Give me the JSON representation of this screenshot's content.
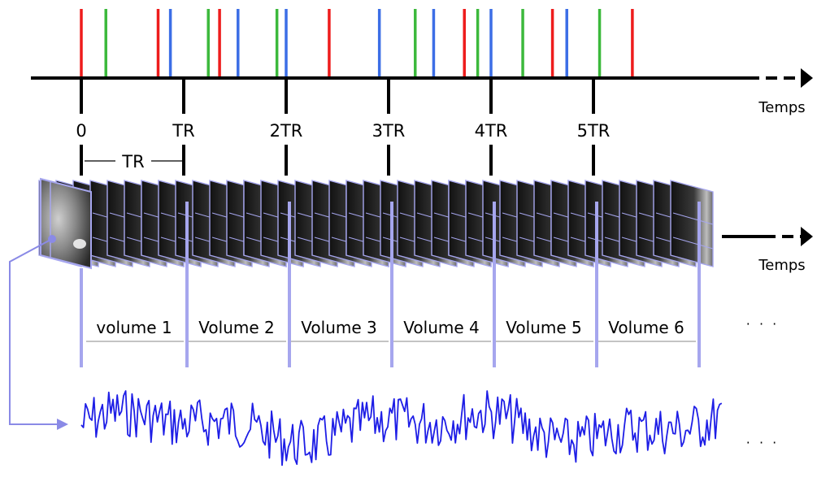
{
  "timeline": {
    "axis_label": "Temps",
    "ticks": [
      "0",
      "TR",
      "2TR",
      "3TR",
      "4TR",
      "5TR"
    ],
    "tr_span_label": "TR",
    "event_colors": {
      "red": "#ee1c1c",
      "green": "#3cb93c",
      "blue": "#3c6ee6"
    },
    "events": [
      {
        "t": 0.0,
        "type": "red"
      },
      {
        "t": 0.24,
        "type": "green"
      },
      {
        "t": 0.75,
        "type": "red"
      },
      {
        "t": 0.87,
        "type": "blue"
      },
      {
        "t": 1.24,
        "type": "green"
      },
      {
        "t": 1.35,
        "type": "red"
      },
      {
        "t": 1.53,
        "type": "blue"
      },
      {
        "t": 1.91,
        "type": "green"
      },
      {
        "t": 2.0,
        "type": "blue"
      },
      {
        "t": 2.42,
        "type": "red"
      },
      {
        "t": 2.91,
        "type": "blue"
      },
      {
        "t": 3.26,
        "type": "green"
      },
      {
        "t": 3.44,
        "type": "blue"
      },
      {
        "t": 3.74,
        "type": "red"
      },
      {
        "t": 3.87,
        "type": "green"
      },
      {
        "t": 4.0,
        "type": "blue"
      },
      {
        "t": 4.31,
        "type": "green"
      },
      {
        "t": 4.6,
        "type": "red"
      },
      {
        "t": 4.74,
        "type": "blue"
      },
      {
        "t": 5.06,
        "type": "green"
      },
      {
        "t": 5.38,
        "type": "red"
      }
    ]
  },
  "acquisition": {
    "axis_label": "Temps",
    "volumes": [
      "volume 1",
      "Volume 2",
      "Volume 3",
      "Volume 4",
      "Volume 5",
      "Volume 6"
    ],
    "ellipsis": "· · ·",
    "frame_color": "#a6a6ee"
  },
  "signal": {
    "ellipsis": "· · ·",
    "color": "#1e1ee6",
    "seed": 7
  }
}
